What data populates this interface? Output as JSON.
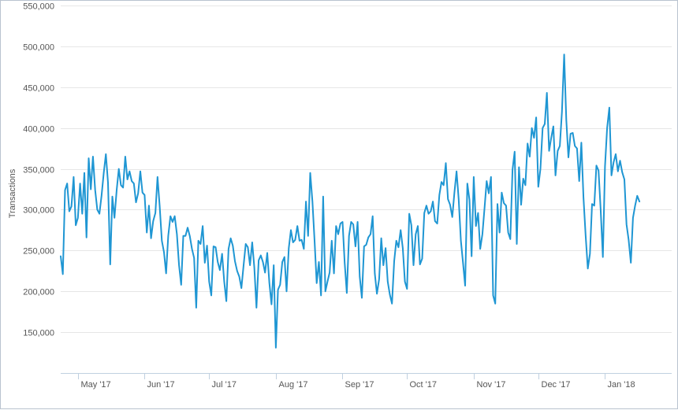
{
  "chart_data": {
    "type": "line",
    "title": "",
    "xlabel": "",
    "ylabel": "Transactions",
    "ylim": [
      100000,
      550000
    ],
    "y_ticks": [
      150000,
      200000,
      250000,
      300000,
      350000,
      400000,
      450000,
      500000,
      550000
    ],
    "y_tick_labels": [
      "150,000",
      "200,000",
      "250,000",
      "300,000",
      "350,000",
      "400,000",
      "450,000",
      "500,000",
      "550,000"
    ],
    "x_start": "2017-04-23",
    "x_end": "2018-02-01",
    "x_ticks": [
      "2017-05-01",
      "2017-06-01",
      "2017-07-01",
      "2017-08-01",
      "2017-09-01",
      "2017-10-01",
      "2017-11-01",
      "2017-12-01",
      "2018-01-01"
    ],
    "x_tick_labels": [
      "May '17",
      "Jun '17",
      "Jul '17",
      "Aug '17",
      "Sep '17",
      "Oct '17",
      "Nov '17",
      "Dec '17",
      "Jan '18"
    ],
    "grid": "horizontal",
    "legend": "none",
    "color": "#1f96d3",
    "series": [
      {
        "x_start": "2017-04-23",
        "step_days": 1,
        "values": [
          243000,
          221000,
          324000,
          332000,
          298000,
          304000,
          340000,
          281000,
          290000,
          332000,
          295000,
          345000,
          266000,
          363000,
          325000,
          365000,
          324000,
          300000,
          295000,
          317000,
          345000,
          368000,
          333000,
          233000,
          316000,
          290000,
          324000,
          350000,
          330000,
          327000,
          365000,
          337000,
          347000,
          335000,
          332000,
          309000,
          320000,
          347000,
          321000,
          318000,
          272000,
          305000,
          265000,
          286000,
          296000,
          340000,
          305000,
          262000,
          248000,
          222000,
          268000,
          292000,
          285000,
          292000,
          270000,
          232000,
          208000,
          268000,
          268000,
          278000,
          268000,
          252000,
          241000,
          180000,
          262000,
          258000,
          280000,
          235000,
          256000,
          212000,
          195000,
          255000,
          254000,
          236000,
          226000,
          246000,
          212000,
          188000,
          252000,
          265000,
          256000,
          237000,
          225000,
          218000,
          204000,
          232000,
          258000,
          254000,
          232000,
          260000,
          229000,
          180000,
          238000,
          244000,
          236000,
          223000,
          247000,
          210000,
          184000,
          232000,
          131000,
          202000,
          208000,
          236000,
          242000,
          200000,
          253000,
          275000,
          260000,
          263000,
          280000,
          262000,
          263000,
          252000,
          310000,
          268000,
          345000,
          310000,
          262000,
          210000,
          236000,
          195000,
          316000,
          200000,
          212000,
          223000,
          262000,
          222000,
          280000,
          270000,
          283000,
          285000,
          235000,
          198000,
          268000,
          285000,
          282000,
          255000,
          285000,
          218000,
          192000,
          255000,
          257000,
          266000,
          270000,
          292000,
          222000,
          197000,
          215000,
          265000,
          232000,
          253000,
          212000,
          196000,
          185000,
          237000,
          262000,
          254000,
          275000,
          253000,
          212000,
          203000,
          295000,
          281000,
          232000,
          270000,
          280000,
          233000,
          240000,
          296000,
          305000,
          295000,
          298000,
          310000,
          286000,
          283000,
          318000,
          334000,
          330000,
          357000,
          313000,
          306000,
          291000,
          321000,
          347000,
          313000,
          262000,
          235000,
          207000,
          332000,
          312000,
          243000,
          340000,
          280000,
          296000,
          252000,
          270000,
          302000,
          335000,
          320000,
          340000,
          195000,
          185000,
          307000,
          272000,
          321000,
          308000,
          305000,
          272000,
          264000,
          349000,
          371000,
          258000,
          352000,
          306000,
          338000,
          330000,
          381000,
          365000,
          400000,
          388000,
          413000,
          328000,
          350000,
          400000,
          405000,
          443000,
          372000,
          388000,
          402000,
          342000,
          372000,
          378000,
          420000,
          490000,
          410000,
          364000,
          393000,
          394000,
          378000,
          375000,
          335000,
          382000,
          315000,
          269000,
          228000,
          246000,
          307000,
          305000,
          354000,
          348000,
          300000,
          242000,
          353000,
          400000,
          425000,
          342000,
          358000,
          368000,
          347000,
          360000,
          346000,
          337000,
          282000,
          263000,
          235000,
          290000,
          305000,
          317000,
          310000
        ]
      }
    ]
  }
}
